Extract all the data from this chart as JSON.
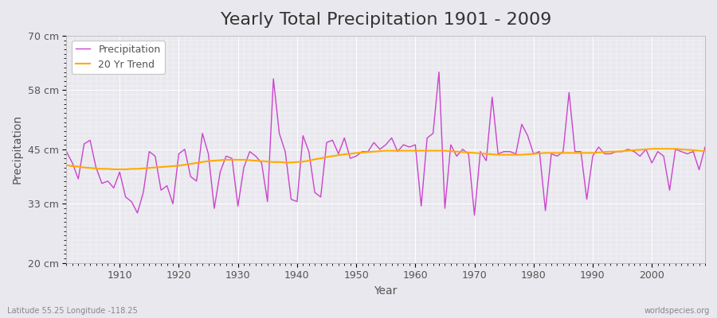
{
  "title": "Yearly Total Precipitation 1901 - 2009",
  "xlabel": "Year",
  "ylabel": "Precipitation",
  "bottom_left_label": "Latitude 55.25 Longitude -118.25",
  "bottom_right_label": "worldspecies.org",
  "years": [
    1901,
    1902,
    1903,
    1904,
    1905,
    1906,
    1907,
    1908,
    1909,
    1910,
    1911,
    1912,
    1913,
    1914,
    1915,
    1916,
    1917,
    1918,
    1919,
    1920,
    1921,
    1922,
    1923,
    1924,
    1925,
    1926,
    1927,
    1928,
    1929,
    1930,
    1931,
    1932,
    1933,
    1934,
    1935,
    1936,
    1937,
    1938,
    1939,
    1940,
    1941,
    1942,
    1943,
    1944,
    1945,
    1946,
    1947,
    1948,
    1949,
    1950,
    1951,
    1952,
    1953,
    1954,
    1955,
    1956,
    1957,
    1958,
    1959,
    1960,
    1961,
    1962,
    1963,
    1964,
    1965,
    1966,
    1967,
    1968,
    1969,
    1970,
    1971,
    1972,
    1973,
    1974,
    1975,
    1976,
    1977,
    1978,
    1979,
    1980,
    1981,
    1982,
    1983,
    1984,
    1985,
    1986,
    1987,
    1988,
    1989,
    1990,
    1991,
    1992,
    1993,
    1994,
    1995,
    1996,
    1997,
    1998,
    1999,
    2000,
    2001,
    2002,
    2003,
    2004,
    2005,
    2006,
    2007,
    2008,
    2009
  ],
  "precipitation": [
    44.5,
    42.0,
    38.5,
    46.2,
    47.0,
    41.0,
    37.5,
    38.0,
    36.5,
    40.0,
    34.5,
    33.5,
    31.0,
    35.5,
    44.5,
    43.5,
    36.0,
    37.0,
    33.0,
    44.0,
    45.0,
    39.0,
    38.0,
    48.5,
    44.0,
    32.0,
    40.0,
    43.5,
    43.0,
    32.5,
    41.0,
    44.5,
    43.5,
    42.0,
    33.5,
    60.5,
    48.5,
    44.5,
    34.0,
    33.5,
    48.0,
    44.5,
    35.5,
    34.5,
    46.5,
    47.0,
    44.0,
    47.5,
    43.0,
    43.5,
    44.5,
    44.5,
    46.5,
    45.0,
    46.0,
    47.5,
    44.5,
    46.0,
    45.5,
    46.0,
    32.5,
    47.5,
    48.5,
    62.0,
    32.0,
    46.0,
    43.5,
    45.0,
    44.0,
    30.5,
    44.5,
    42.5,
    56.5,
    44.0,
    44.5,
    44.5,
    44.0,
    50.5,
    48.0,
    44.0,
    44.5,
    31.5,
    44.0,
    43.5,
    44.5,
    57.5,
    44.5,
    44.5,
    34.0,
    43.5,
    45.5,
    44.0,
    44.0,
    44.5,
    44.5,
    45.0,
    44.5,
    43.5,
    45.0,
    42.0,
    44.5,
    43.5,
    36.0,
    45.0,
    44.5,
    44.0,
    44.5,
    40.5,
    45.5
  ],
  "trend": [
    41.5,
    41.3,
    41.2,
    41.0,
    40.9,
    40.8,
    40.7,
    40.7,
    40.6,
    40.6,
    40.6,
    40.7,
    40.7,
    40.8,
    40.9,
    41.0,
    41.1,
    41.2,
    41.3,
    41.4,
    41.6,
    41.8,
    42.0,
    42.2,
    42.4,
    42.5,
    42.6,
    42.7,
    42.7,
    42.7,
    42.7,
    42.6,
    42.5,
    42.4,
    42.3,
    42.2,
    42.2,
    42.1,
    42.1,
    42.2,
    42.3,
    42.5,
    42.8,
    43.0,
    43.3,
    43.5,
    43.7,
    43.9,
    44.0,
    44.2,
    44.3,
    44.4,
    44.5,
    44.6,
    44.7,
    44.7,
    44.7,
    44.7,
    44.7,
    44.7,
    44.7,
    44.7,
    44.7,
    44.7,
    44.7,
    44.6,
    44.5,
    44.4,
    44.3,
    44.2,
    44.1,
    44.0,
    43.9,
    43.8,
    43.8,
    43.8,
    43.8,
    43.8,
    43.9,
    44.0,
    44.1,
    44.2,
    44.2,
    44.2,
    44.2,
    44.2,
    44.2,
    44.2,
    44.2,
    44.2,
    44.3,
    44.4,
    44.5,
    44.5,
    44.6,
    44.7,
    44.8,
    44.9,
    45.0,
    45.1,
    45.1,
    45.1,
    45.1,
    45.1,
    45.0,
    44.9,
    44.8,
    44.7,
    44.6
  ],
  "ylim": [
    20,
    70
  ],
  "yticks": [
    20,
    33,
    45,
    58,
    70
  ],
  "ytick_labels": [
    "20 cm",
    "33 cm",
    "45 cm",
    "58 cm",
    "70 cm"
  ],
  "xlim": [
    1901,
    2009
  ],
  "xticks": [
    1910,
    1920,
    1930,
    1940,
    1950,
    1960,
    1970,
    1980,
    1990,
    2000
  ],
  "bg_color": "#e8e8ee",
  "plot_bg_color": "#e8e8ee",
  "precip_color": "#cc44cc",
  "trend_color": "#ffaa00",
  "grid_color": "#ffffff",
  "title_fontsize": 16,
  "axis_label_fontsize": 10,
  "tick_fontsize": 9,
  "legend_fontsize": 9
}
